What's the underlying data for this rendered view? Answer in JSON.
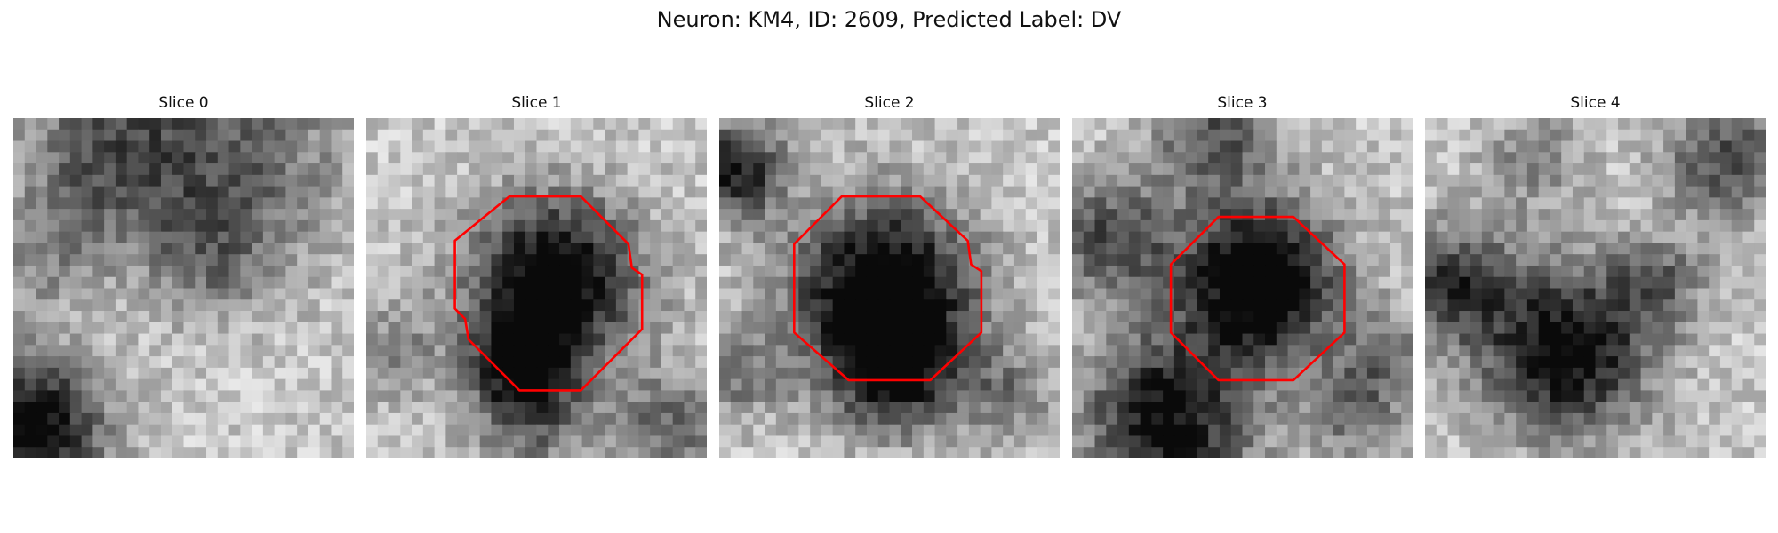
{
  "figure": {
    "title": "Neuron: KM4, ID: 2609, Predicted Label: DV"
  },
  "panels": [
    {
      "title": "Slice 0",
      "roi_outline": false
    },
    {
      "title": "Slice 1",
      "roi_outline": true
    },
    {
      "title": "Slice 2",
      "roi_outline": true
    },
    {
      "title": "Slice 3",
      "roi_outline": true
    },
    {
      "title": "Slice 4",
      "roi_outline": false
    }
  ],
  "colors": {
    "roi_outline": "#ff0000",
    "background": "#ffffff"
  },
  "image_style": "grayscale-pixel-grid"
}
